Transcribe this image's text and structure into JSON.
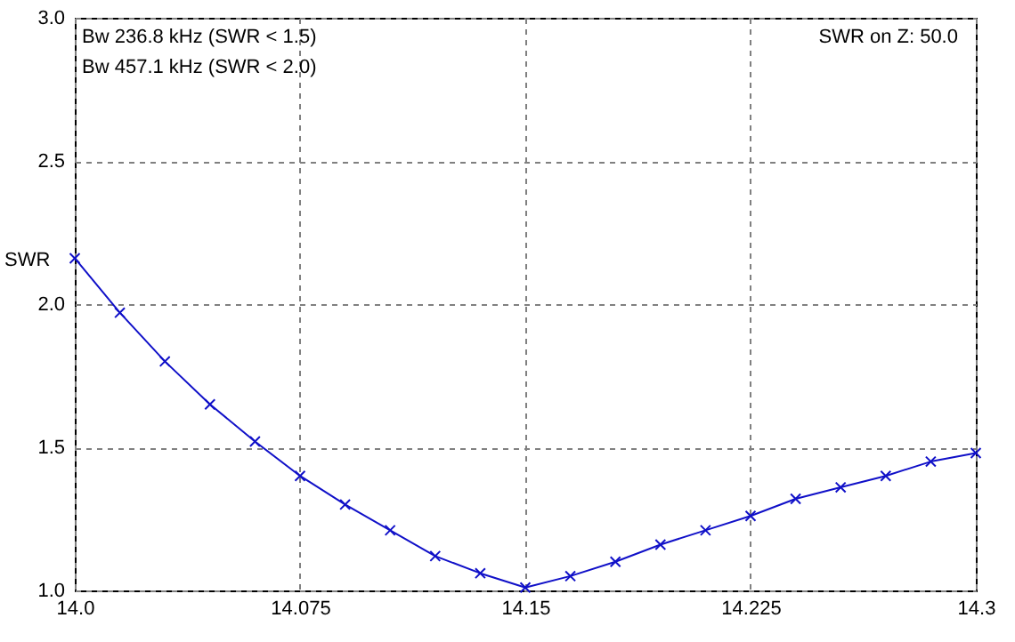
{
  "chart_data": {
    "type": "line",
    "ylabel": "SWR",
    "annotations": [
      "Bw 236.8 kHz (SWR < 1.5)",
      "Bw 457.1 kHz (SWR < 2.0)",
      "SWR on Z: 50.0"
    ],
    "x": [
      14.0,
      14.015,
      14.03,
      14.045,
      14.06,
      14.075,
      14.09,
      14.105,
      14.12,
      14.135,
      14.15,
      14.165,
      14.18,
      14.195,
      14.21,
      14.225,
      14.24,
      14.255,
      14.27,
      14.285,
      14.3
    ],
    "series": [
      {
        "color": "#1010c8",
        "values": [
          2.16,
          1.97,
          1.8,
          1.65,
          1.52,
          1.4,
          1.3,
          1.21,
          1.12,
          1.06,
          1.01,
          1.05,
          1.1,
          1.16,
          1.21,
          1.26,
          1.32,
          1.36,
          1.4,
          1.45,
          1.48
        ]
      }
    ],
    "xlim": [
      14.0,
      14.3
    ],
    "ylim": [
      1.0,
      3.0
    ],
    "xticks": [
      {
        "value": 14,
        "label": "14.0"
      },
      14.075,
      14.15,
      14.225,
      14.3
    ],
    "yticks": [
      {
        "value": 1,
        "label": "1.0"
      },
      1.5,
      {
        "value": 2,
        "label": "2.0"
      },
      2.5,
      {
        "value": 3,
        "label": "3.0"
      }
    ],
    "grid": true,
    "marker": "cross",
    "line_style": "solid"
  }
}
